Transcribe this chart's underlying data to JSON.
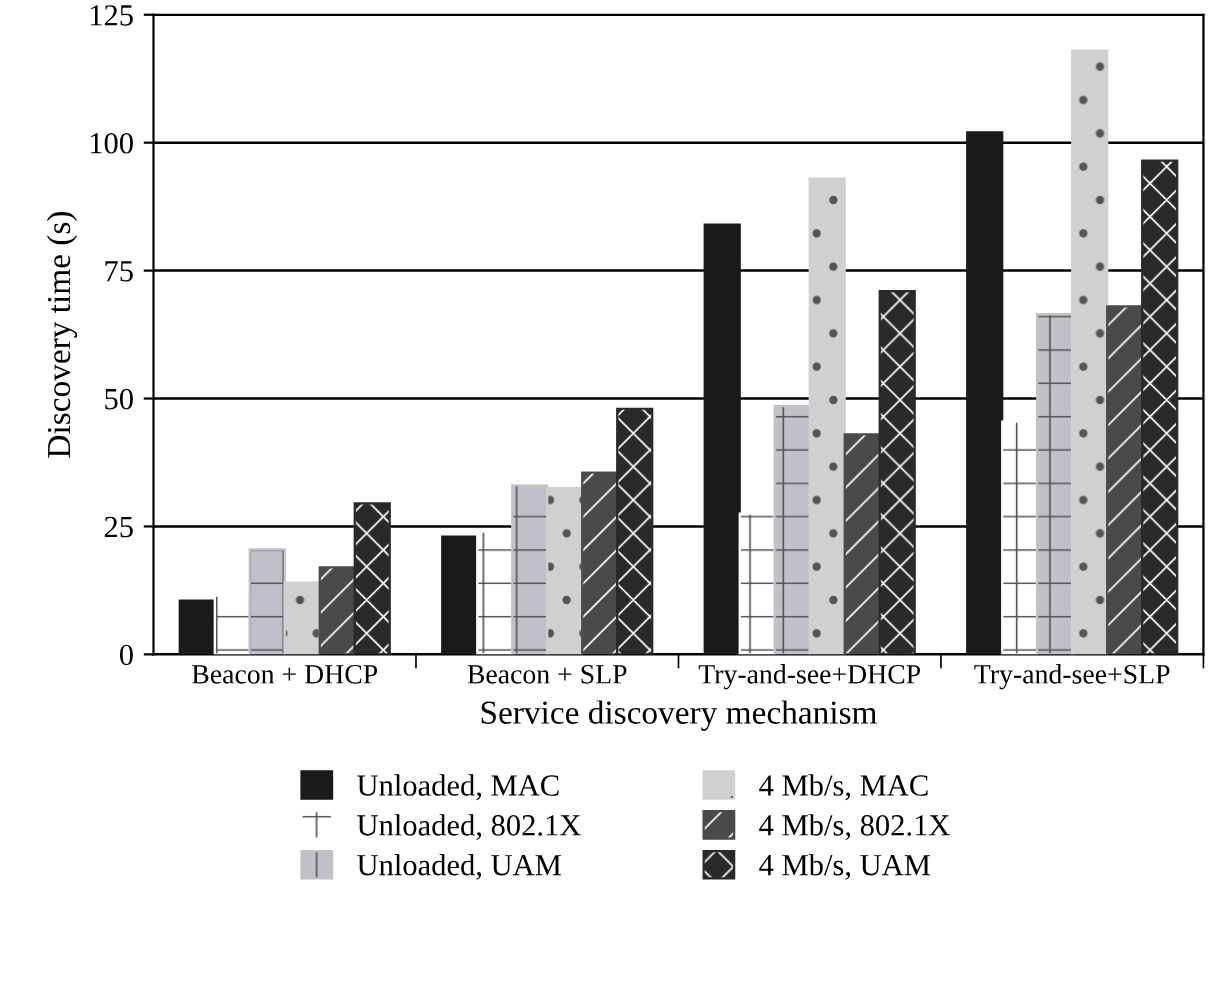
{
  "chart_data": {
    "type": "bar",
    "xlabel": "Service discovery mechanism",
    "ylabel": "Discovery time (s)",
    "categories": [
      "Beacon + DHCP",
      "Beacon + SLP",
      "Try-and-see+DHCP",
      "Try-and-see+SLP"
    ],
    "series": [
      {
        "name": "Unloaded, MAC",
        "color": "#1a1a1a",
        "values": [
          10.5,
          23,
          84,
          102
        ]
      },
      {
        "name": "Unloaded, 802.1X",
        "color": "#ffffff",
        "values": [
          11.5,
          24,
          27.5,
          45.5
        ]
      },
      {
        "name": "Unloaded, UAM",
        "color": "#c0c0c8",
        "values": [
          20.5,
          33,
          48.5,
          66.5
        ]
      },
      {
        "name": "4 Mb/s, MAC",
        "color": "#d0d0d0",
        "values": [
          14,
          32.5,
          93,
          118
        ]
      },
      {
        "name": "4 Mb/s, 802.1X",
        "color": "#4a4a4a",
        "values": [
          17,
          35.5,
          43,
          68
        ]
      },
      {
        "name": "4 Mb/s, UAM",
        "color": "#2a2a2a",
        "values": [
          29.5,
          48,
          71,
          96.5
        ]
      }
    ],
    "ylim": [
      0,
      125
    ],
    "yticks": [
      0,
      25,
      50,
      75,
      100,
      125
    ],
    "grid": "y",
    "legend": "bottom"
  }
}
